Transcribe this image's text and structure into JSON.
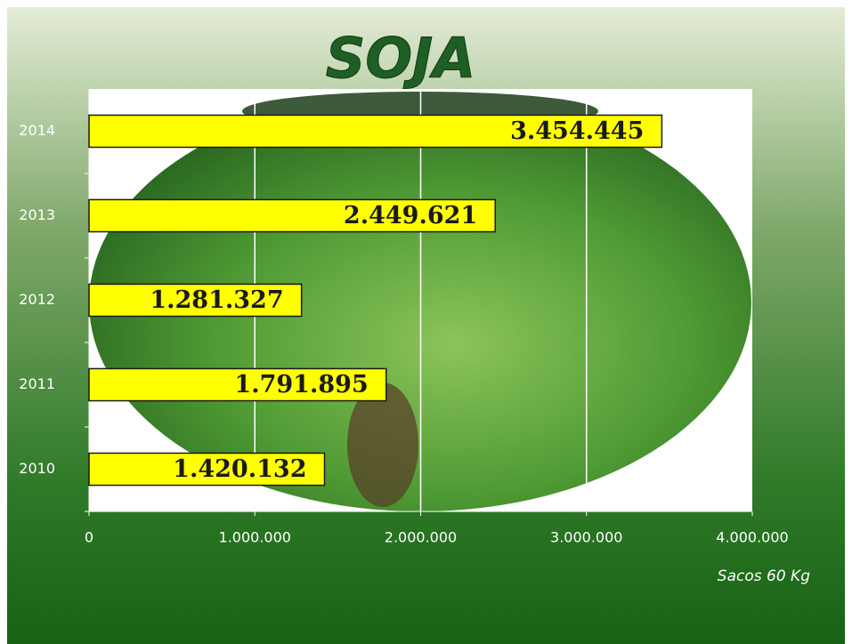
{
  "chart_data": {
    "type": "barh",
    "title": "SOJA",
    "categories": [
      "2010",
      "2011",
      "2012",
      "2013",
      "2014"
    ],
    "values": [
      1420132,
      1791895,
      1281327,
      2449621,
      3454445
    ],
    "value_labels": [
      "1.420.132",
      "1.791.895",
      "1.281.327",
      "2.449.621",
      "3.454.445"
    ],
    "color": "#ffff00",
    "x_label": "Sacos 60 Kg",
    "xlim": [
      0,
      4000000
    ],
    "xticks": [
      0,
      {
        "value": 1000000,
        "label": "1.000.000"
      },
      {
        "value": 2000000,
        "label": "2.000.000"
      },
      {
        "value": 3000000,
        "label": "3.000.000"
      },
      {
        "value": 4000000,
        "label": "4.000.000"
      }
    ],
    "grid": true
  }
}
